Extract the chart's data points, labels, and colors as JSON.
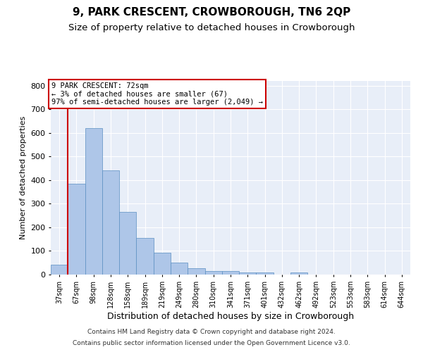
{
  "title": "9, PARK CRESCENT, CROWBOROUGH, TN6 2QP",
  "subtitle": "Size of property relative to detached houses in Crowborough",
  "xlabel": "Distribution of detached houses by size in Crowborough",
  "ylabel": "Number of detached properties",
  "bar_labels": [
    "37sqm",
    "67sqm",
    "98sqm",
    "128sqm",
    "158sqm",
    "189sqm",
    "219sqm",
    "249sqm",
    "280sqm",
    "310sqm",
    "341sqm",
    "371sqm",
    "401sqm",
    "432sqm",
    "462sqm",
    "492sqm",
    "523sqm",
    "553sqm",
    "583sqm",
    "614sqm",
    "644sqm"
  ],
  "bar_values": [
    42,
    385,
    620,
    440,
    265,
    155,
    93,
    52,
    28,
    15,
    15,
    10,
    10,
    0,
    8,
    0,
    0,
    0,
    0,
    0,
    0
  ],
  "bar_color": "#aec6e8",
  "bar_edge_color": "#5a8fc2",
  "annotation_title": "9 PARK CRESCENT: 72sqm",
  "annotation_line1": "← 3% of detached houses are smaller (67)",
  "annotation_line2": "97% of semi-detached houses are larger (2,049) →",
  "annotation_box_color": "#ffffff",
  "annotation_box_edge": "#cc0000",
  "red_line_color": "#cc0000",
  "ylim": [
    0,
    820
  ],
  "yticks": [
    0,
    100,
    200,
    300,
    400,
    500,
    600,
    700,
    800
  ],
  "footer1": "Contains HM Land Registry data © Crown copyright and database right 2024.",
  "footer2": "Contains public sector information licensed under the Open Government Licence v3.0.",
  "plot_background": "#e8eef8",
  "title_fontsize": 11,
  "subtitle_fontsize": 9.5,
  "bar_width": 1.0
}
